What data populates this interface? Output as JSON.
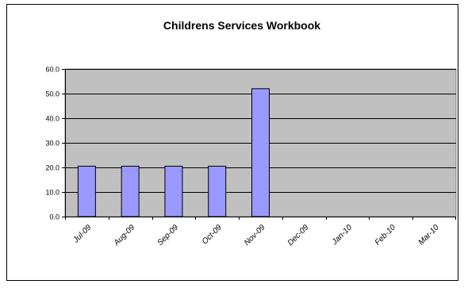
{
  "chart_data": {
    "type": "bar",
    "title": "Childrens Services Workbook",
    "xlabel": "",
    "ylabel": "",
    "categories": [
      "Jul-09",
      "Aug-09",
      "Sep-09",
      "Oct-09",
      "Nov-09",
      "Dec-09",
      "Jan-10",
      "Feb-10",
      "Mar-10"
    ],
    "series": [
      {
        "values": [
          20.5,
          20.5,
          20.5,
          20.5,
          52.0,
          null,
          null,
          null,
          null
        ]
      }
    ],
    "ylim": [
      0,
      60
    ],
    "yticks": [
      "0.0",
      "10.0",
      "20.0",
      "30.0",
      "40.0",
      "50.0",
      "60.0"
    ],
    "grid": true,
    "legend": "none",
    "colors": {
      "plot_background": "#c0c0c0",
      "bar_fill": "#9999ff",
      "bar_stroke": "#000000",
      "gridline": "#000000"
    }
  }
}
